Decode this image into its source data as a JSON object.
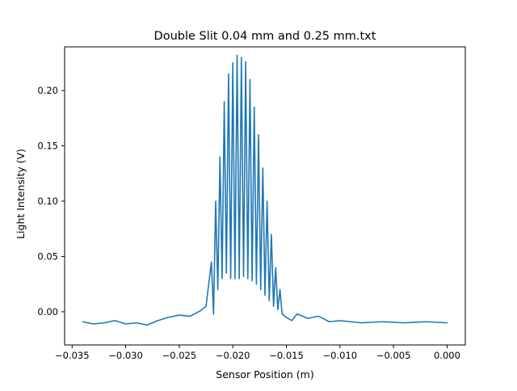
{
  "chart_data": {
    "type": "line",
    "title": "Double Slit 0.04 mm and 0.25 mm.txt",
    "xlabel": "Sensor Position (m)",
    "ylabel": "Light Intensity (V)",
    "xlim": [
      -0.0357,
      0.0017
    ],
    "ylim": [
      -0.03,
      0.2395
    ],
    "x_ticks": [
      -0.035,
      -0.03,
      -0.025,
      -0.02,
      -0.015,
      -0.01,
      -0.005,
      0.0
    ],
    "x_tick_labels": [
      "−0.035",
      "−0.030",
      "−0.025",
      "−0.020",
      "−0.015",
      "−0.010",
      "−0.005",
      "0.000"
    ],
    "y_ticks": [
      0.0,
      0.05,
      0.1,
      0.15,
      0.2
    ],
    "y_tick_labels": [
      "0.00",
      "0.05",
      "0.10",
      "0.15",
      "0.20"
    ],
    "grid": false,
    "legend": "none",
    "series": [
      {
        "color": "#1f77b4",
        "x": [
          -0.034,
          -0.033,
          -0.032,
          -0.031,
          -0.03,
          -0.029,
          -0.028,
          -0.027,
          -0.026,
          -0.025,
          -0.024,
          -0.023,
          -0.0225,
          -0.022,
          -0.0218,
          -0.0216,
          -0.0214,
          -0.0212,
          -0.021,
          -0.0208,
          -0.0206,
          -0.0204,
          -0.0202,
          -0.02,
          -0.0198,
          -0.0196,
          -0.0194,
          -0.0192,
          -0.019,
          -0.0188,
          -0.0186,
          -0.0184,
          -0.0182,
          -0.018,
          -0.0178,
          -0.0176,
          -0.0174,
          -0.0172,
          -0.017,
          -0.0168,
          -0.0166,
          -0.0164,
          -0.0162,
          -0.016,
          -0.0158,
          -0.0156,
          -0.0154,
          -0.015,
          -0.0145,
          -0.014,
          -0.013,
          -0.012,
          -0.011,
          -0.01,
          -0.008,
          -0.006,
          -0.004,
          -0.002,
          0.0
        ],
        "y": [
          -0.009,
          -0.011,
          -0.01,
          -0.008,
          -0.011,
          -0.01,
          -0.012,
          -0.008,
          -0.005,
          -0.003,
          -0.004,
          0.001,
          0.005,
          0.045,
          -0.002,
          0.1,
          0.02,
          0.14,
          0.03,
          0.19,
          0.035,
          0.215,
          0.03,
          0.225,
          0.03,
          0.232,
          0.03,
          0.23,
          0.032,
          0.226,
          0.03,
          0.21,
          0.028,
          0.185,
          0.025,
          0.16,
          0.02,
          0.13,
          0.015,
          0.1,
          0.01,
          0.07,
          0.005,
          0.04,
          0.002,
          0.02,
          -0.002,
          -0.005,
          -0.008,
          -0.002,
          -0.006,
          -0.004,
          -0.009,
          -0.008,
          -0.01,
          -0.009,
          -0.01,
          -0.009,
          -0.01
        ]
      }
    ]
  }
}
